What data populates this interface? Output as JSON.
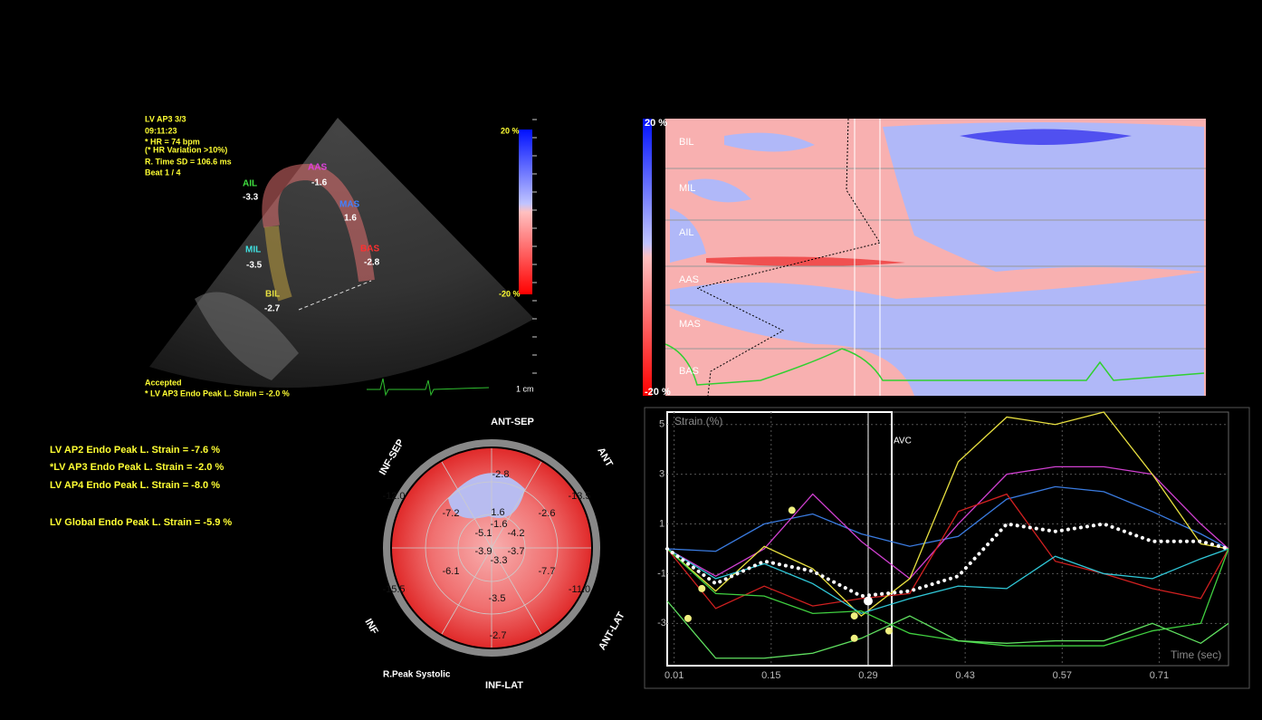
{
  "echo": {
    "info": [
      "LV AP3 3/3",
      "09:11:23",
      "* HR = 74 bpm",
      "(* HR Variation >10%)",
      "R. Time SD = 106.6 ms",
      "Beat 1 / 4"
    ],
    "segments": [
      {
        "name": "AAS",
        "value": "-1.6"
      },
      {
        "name": "AIL",
        "value": "-3.3"
      },
      {
        "name": "MAS",
        "value": "1.6"
      },
      {
        "name": "MIL",
        "value": "-3.5"
      },
      {
        "name": "BAS",
        "value": "-2.8"
      },
      {
        "name": "BIL",
        "value": "-2.7"
      }
    ],
    "scale_max": "20 %",
    "scale_min": "-20 %",
    "depth_unit": "1 cm",
    "status": "Accepted",
    "peak_strain": "* LV AP3 Endo Peak L. Strain = -2.0 %"
  },
  "summary": [
    "LV AP2 Endo Peak L. Strain = -7.6 %",
    "*LV AP3 Endo Peak L. Strain = -2.0 %",
    "LV AP4 Endo Peak L. Strain = -8.0 %",
    "LV Global Endo Peak L. Strain = -5.9 %"
  ],
  "bullseye": {
    "walls": [
      "ANT-SEP",
      "ANT",
      "ANT-LAT",
      "INF-LAT",
      "INF",
      "INF-SEP"
    ],
    "values": [
      "-2.8",
      "-13.5",
      "-11.0",
      "-2.7",
      "-15.5",
      "-12.0",
      "1.6",
      "-2.6",
      "-7.7",
      "-3.5",
      "-6.1",
      "-7.2",
      "-1.6",
      "-4.2",
      "-3.7",
      "-3.9",
      "-5.1",
      "-3.3"
    ],
    "caption": "R.Peak Systolic"
  },
  "heatmap": {
    "rows": [
      "BIL",
      "MIL",
      "AIL",
      "AAS",
      "MAS",
      "BAS"
    ],
    "scale_max": "20 %",
    "scale_min": "-20 %"
  },
  "strain_chart": {
    "y_label": "Strain (%)",
    "x_label": "Time (sec)",
    "marker_label": "AVC",
    "avc_x": 0.29,
    "xlim": [
      0,
      0.81
    ],
    "ylim": [
      -4.7,
      5.5
    ],
    "xticks": [
      0.01,
      0.15,
      0.29,
      0.43,
      0.57,
      0.71
    ],
    "yticks": [
      5,
      3,
      1,
      -1,
      -3
    ],
    "x": [
      0,
      0.07,
      0.14,
      0.21,
      0.28,
      0.35,
      0.42,
      0.49,
      0.56,
      0.63,
      0.7,
      0.77,
      0.81
    ],
    "series": [
      {
        "color": "#3a7be0",
        "values": [
          0,
          -0.1,
          1.0,
          1.4,
          0.6,
          0.1,
          0.5,
          2.0,
          2.5,
          2.3,
          1.5,
          0.6,
          0
        ]
      },
      {
        "color": "#d040d0",
        "values": [
          0,
          -1.1,
          0.0,
          2.2,
          0.3,
          -1.2,
          1.0,
          3.0,
          3.3,
          3.3,
          3.0,
          1.0,
          0
        ]
      },
      {
        "color": "#d02020",
        "values": [
          0,
          -2.4,
          -1.5,
          -2.3,
          -2.0,
          -1.8,
          1.5,
          2.2,
          -0.5,
          -1.0,
          -1.6,
          -2.0,
          0
        ]
      },
      {
        "color": "#e8e040",
        "values": [
          0,
          -1.7,
          0.1,
          -0.8,
          -2.7,
          -1.2,
          3.5,
          5.3,
          5.0,
          5.5,
          3.0,
          0.2,
          0
        ]
      },
      {
        "color": "#30c8d8",
        "values": [
          0,
          -1.2,
          -0.6,
          -1.4,
          -2.6,
          -2.0,
          -1.5,
          -1.6,
          -0.3,
          -1.0,
          -1.2,
          -0.4,
          0
        ]
      },
      {
        "color": "#40d040",
        "values": [
          0,
          -1.8,
          -1.9,
          -2.6,
          -2.5,
          -3.4,
          -3.7,
          -3.9,
          -3.9,
          -3.9,
          -3.3,
          -3.0,
          0
        ]
      },
      {
        "color": "#60e060",
        "values": [
          -2.1,
          -4.4,
          -4.4,
          -4.2,
          -3.6,
          -2.7,
          -3.7,
          -3.8,
          -3.7,
          -3.7,
          -3.0,
          -3.8,
          -3.0
        ]
      },
      {
        "color": "#ffffff",
        "dotted": true,
        "values": [
          0,
          -1.4,
          -0.5,
          -0.9,
          -1.9,
          -1.7,
          -1.1,
          1.0,
          0.7,
          1.0,
          0.3,
          0.3,
          0
        ]
      }
    ],
    "peaks": {
      "x": [
        0.05,
        0.03,
        0.18,
        0.27,
        0.27,
        0.32
      ],
      "y": [
        -1.6,
        -2.8,
        1.55,
        -2.7,
        -3.6,
        -3.3
      ]
    },
    "avc_point": {
      "x": 0.29,
      "y": -2.1
    }
  }
}
